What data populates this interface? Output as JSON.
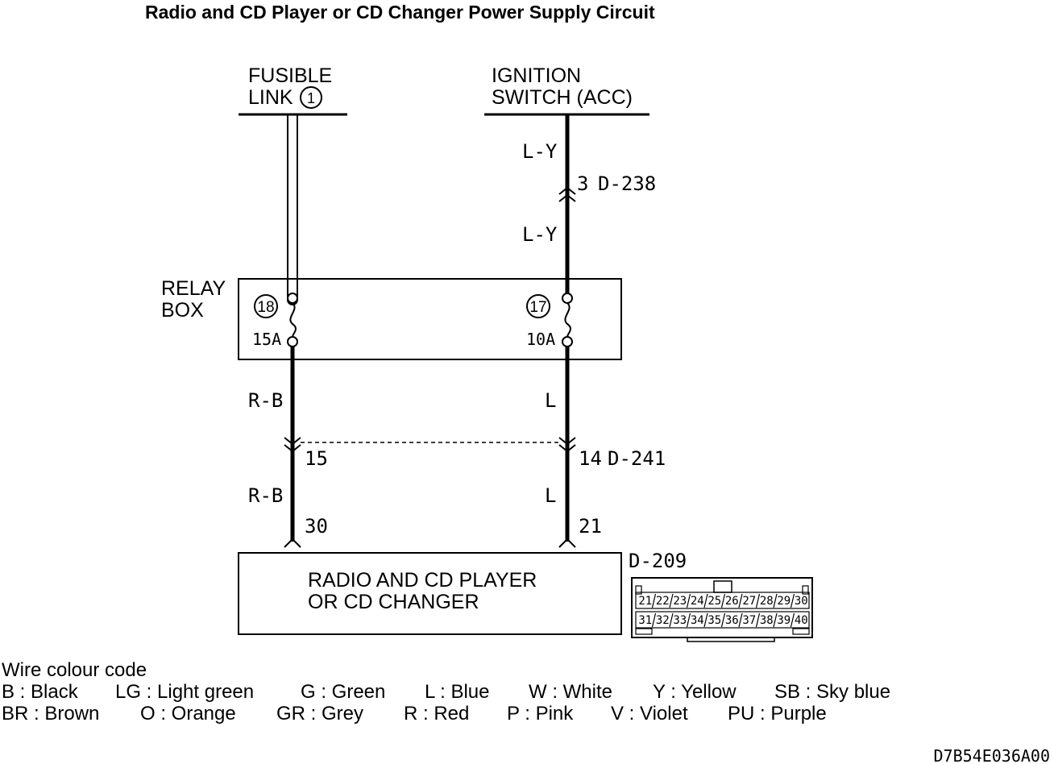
{
  "title": "Radio and CD Player or CD Changer Power Supply Circuit",
  "sources": {
    "fusible_link": {
      "line1": "FUSIBLE",
      "line2": "LINK",
      "number": "1"
    },
    "ignition_switch": {
      "line1": "IGNITION",
      "line2": "SWITCH (ACC)"
    }
  },
  "relay_box": {
    "line1": "RELAY",
    "line2": "BOX",
    "fuses": [
      {
        "number": "18",
        "rating": "15A"
      },
      {
        "number": "17",
        "rating": "10A"
      }
    ]
  },
  "wires": {
    "upper_right_1": "L-Y",
    "upper_right_2": "L-Y",
    "lower_left_1": "R-B",
    "lower_left_2": "R-B",
    "lower_right_1": "L",
    "lower_right_2": "L"
  },
  "connectors": {
    "d238": {
      "pin": "3",
      "name": "D-238"
    },
    "d241": {
      "pin_left": "15",
      "pin_right": "14",
      "name": "D-241"
    },
    "d209_pins": {
      "left": "30",
      "right": "21"
    }
  },
  "component": {
    "line1": "RADIO AND CD PLAYER",
    "line2": "OR CD CHANGER"
  },
  "connector_view": {
    "name": "D-209",
    "row1": [
      "21",
      "22",
      "23",
      "24",
      "25",
      "26",
      "27",
      "28",
      "29",
      "30"
    ],
    "row2": [
      "31",
      "32",
      "33",
      "34",
      "35",
      "36",
      "37",
      "38",
      "39",
      "40"
    ]
  },
  "legend": {
    "heading": "Wire colour code",
    "row1": [
      "B : Black",
      "LG : Light green",
      "G : Green",
      "L : Blue",
      "W : White",
      "Y : Yellow",
      "SB : Sky blue"
    ],
    "row2": [
      "BR : Brown",
      "O : Orange",
      "GR : Grey",
      "R : Red",
      "P : Pink",
      "V : Violet",
      "PU : Purple"
    ]
  },
  "figure_code": "D7B54E036A00"
}
